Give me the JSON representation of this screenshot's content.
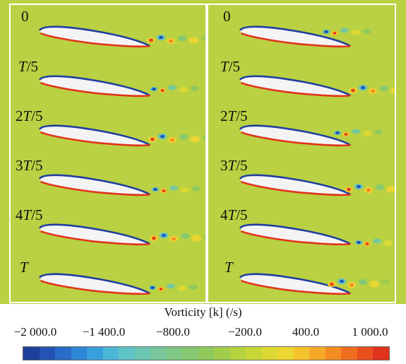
{
  "panels": {
    "left": [
      {
        "pre": "",
        "it": "",
        "post": "0"
      },
      {
        "pre": "",
        "it": "T",
        "post": "/5"
      },
      {
        "pre": "2",
        "it": "T",
        "post": "/5"
      },
      {
        "pre": "3",
        "it": "T",
        "post": "/5"
      },
      {
        "pre": "4",
        "it": "T",
        "post": "/5"
      },
      {
        "pre": "",
        "it": "T",
        "post": ""
      }
    ],
    "right": [
      {
        "pre": "",
        "it": "",
        "post": "0"
      },
      {
        "pre": "",
        "it": "T",
        "post": "/5"
      },
      {
        "pre": "2",
        "it": "T",
        "post": "/5"
      },
      {
        "pre": "3",
        "it": "T",
        "post": "/5"
      },
      {
        "pre": "4",
        "it": "T",
        "post": "/5"
      },
      {
        "pre": "",
        "it": "T",
        "post": ""
      }
    ]
  },
  "colorbar": {
    "title": "Vorticity [k] (/s)",
    "ticks": [
      "−2 000.0",
      "−1 400.0",
      "−800.0",
      "−200.0",
      "400.0",
      "1 000.0"
    ],
    "range": [
      -2000,
      1000
    ],
    "colors": [
      "#1f3f9a",
      "#2453b3",
      "#2a6bc8",
      "#2f86d6",
      "#38a0dc",
      "#4cb6d6",
      "#5fc2c7",
      "#6cc6b2",
      "#77c79a",
      "#7fc784",
      "#86c86f",
      "#8fc95c",
      "#a0cd4b",
      "#b5d23f",
      "#c9d638",
      "#dcd934",
      "#ecd630",
      "#f4c22c",
      "#f6a928",
      "#f48c24",
      "#ef6e20",
      "#e8501d",
      "#e0331b"
    ],
    "background_color": "#b9d142"
  }
}
